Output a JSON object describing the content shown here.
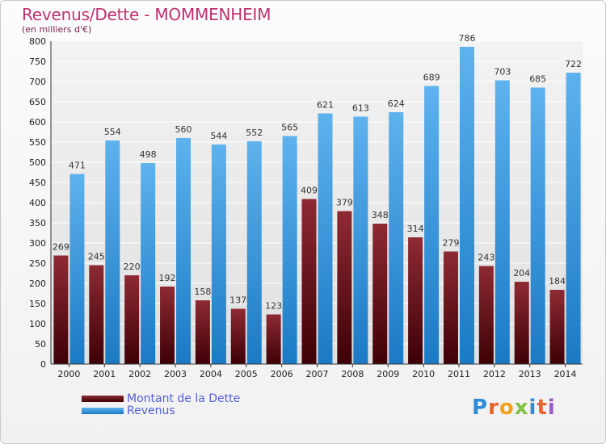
{
  "title": "Revenus/Dette - MOMMENHEIM",
  "subtitle": "(en milliers d'€)",
  "brand": "Proxiti",
  "colors": {
    "dette_top": "#8e2a33",
    "dette_bottom": "#3d0006",
    "revenus_top": "#5eb2ee",
    "revenus_bottom": "#1b7ac4",
    "title": "#c0306f",
    "legend_text": "#5560d8",
    "grid": "#ffffff",
    "plot_bg": "#e8e8e8"
  },
  "legend": [
    {
      "label": "Montant de la Dette",
      "series": 0
    },
    {
      "label": "Revenus",
      "series": 1
    }
  ],
  "chart_data": {
    "type": "bar",
    "title": "Revenus/Dette - MOMMENHEIM",
    "subtitle": "(en milliers d'€)",
    "categories": [
      "2000",
      "2001",
      "2002",
      "2003",
      "2004",
      "2005",
      "2006",
      "2007",
      "2008",
      "2009",
      "2010",
      "2011",
      "2012",
      "2013",
      "2014"
    ],
    "series": [
      {
        "name": "Montant de la Dette",
        "values": [
          269,
          245,
          220,
          192,
          158,
          137,
          123,
          409,
          379,
          348,
          314,
          279,
          243,
          204,
          184
        ]
      },
      {
        "name": "Revenus",
        "values": [
          471,
          554,
          498,
          560,
          544,
          552,
          565,
          621,
          613,
          624,
          689,
          786,
          703,
          685,
          722
        ]
      }
    ],
    "ylim": [
      0,
      800
    ],
    "yticks": [
      0,
      50,
      100,
      150,
      200,
      250,
      300,
      350,
      400,
      450,
      500,
      550,
      600,
      650,
      700,
      750,
      800
    ],
    "grid": true,
    "legend_position": "bottom-left"
  }
}
